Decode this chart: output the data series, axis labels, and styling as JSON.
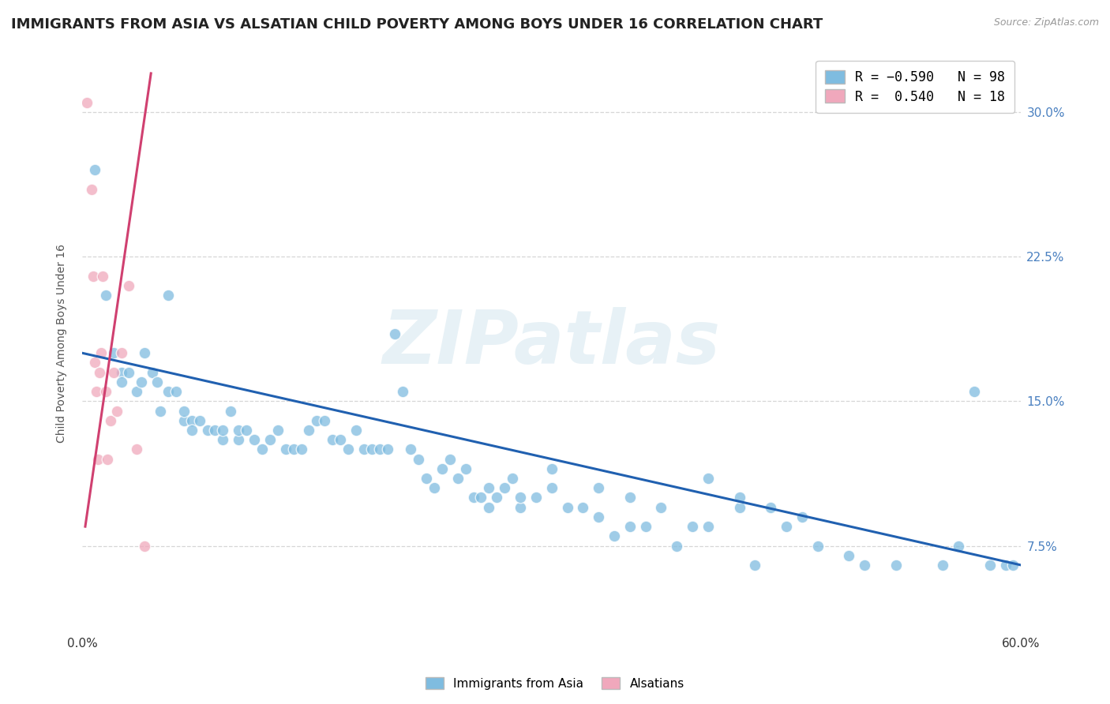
{
  "title": "IMMIGRANTS FROM ASIA VS ALSATIAN CHILD POVERTY AMONG BOYS UNDER 16 CORRELATION CHART",
  "source": "Source: ZipAtlas.com",
  "ylabel": "Child Poverty Among Boys Under 16",
  "xlim": [
    0.0,
    0.6
  ],
  "ylim": [
    0.03,
    0.33
  ],
  "ytick_labels": [
    "7.5%",
    "15.0%",
    "22.5%",
    "30.0%"
  ],
  "ytick_values": [
    0.075,
    0.15,
    0.225,
    0.3
  ],
  "xtick_values": [
    0.0,
    0.6
  ],
  "xtick_labels": [
    "0.0%",
    "60.0%"
  ],
  "watermark": "ZIPatlas",
  "blue_scatter_x": [
    0.008,
    0.015,
    0.02,
    0.025,
    0.025,
    0.03,
    0.035,
    0.038,
    0.04,
    0.045,
    0.048,
    0.05,
    0.055,
    0.055,
    0.06,
    0.065,
    0.065,
    0.07,
    0.07,
    0.075,
    0.08,
    0.085,
    0.09,
    0.09,
    0.095,
    0.1,
    0.1,
    0.105,
    0.11,
    0.115,
    0.12,
    0.125,
    0.13,
    0.135,
    0.14,
    0.145,
    0.15,
    0.155,
    0.16,
    0.165,
    0.17,
    0.175,
    0.18,
    0.185,
    0.19,
    0.195,
    0.2,
    0.205,
    0.21,
    0.215,
    0.22,
    0.225,
    0.23,
    0.235,
    0.24,
    0.245,
    0.25,
    0.255,
    0.26,
    0.265,
    0.27,
    0.275,
    0.28,
    0.29,
    0.3,
    0.31,
    0.32,
    0.33,
    0.34,
    0.35,
    0.36,
    0.38,
    0.4,
    0.42,
    0.43,
    0.45,
    0.47,
    0.49,
    0.5,
    0.52,
    0.55,
    0.56,
    0.57,
    0.58,
    0.59,
    0.595,
    0.4,
    0.42,
    0.44,
    0.46,
    0.33,
    0.35,
    0.37,
    0.39,
    0.3,
    0.28,
    0.26
  ],
  "blue_scatter_y": [
    0.27,
    0.205,
    0.175,
    0.165,
    0.16,
    0.165,
    0.155,
    0.16,
    0.175,
    0.165,
    0.16,
    0.145,
    0.205,
    0.155,
    0.155,
    0.14,
    0.145,
    0.14,
    0.135,
    0.14,
    0.135,
    0.135,
    0.13,
    0.135,
    0.145,
    0.13,
    0.135,
    0.135,
    0.13,
    0.125,
    0.13,
    0.135,
    0.125,
    0.125,
    0.125,
    0.135,
    0.14,
    0.14,
    0.13,
    0.13,
    0.125,
    0.135,
    0.125,
    0.125,
    0.125,
    0.125,
    0.185,
    0.155,
    0.125,
    0.12,
    0.11,
    0.105,
    0.115,
    0.12,
    0.11,
    0.115,
    0.1,
    0.1,
    0.105,
    0.1,
    0.105,
    0.11,
    0.095,
    0.1,
    0.115,
    0.095,
    0.095,
    0.09,
    0.08,
    0.085,
    0.085,
    0.075,
    0.085,
    0.095,
    0.065,
    0.085,
    0.075,
    0.07,
    0.065,
    0.065,
    0.065,
    0.075,
    0.155,
    0.065,
    0.065,
    0.065,
    0.11,
    0.1,
    0.095,
    0.09,
    0.105,
    0.1,
    0.095,
    0.085,
    0.105,
    0.1,
    0.095
  ],
  "pink_scatter_x": [
    0.003,
    0.006,
    0.007,
    0.008,
    0.009,
    0.01,
    0.011,
    0.012,
    0.013,
    0.015,
    0.016,
    0.018,
    0.02,
    0.022,
    0.025,
    0.03,
    0.035,
    0.04
  ],
  "pink_scatter_y": [
    0.305,
    0.26,
    0.215,
    0.17,
    0.155,
    0.12,
    0.165,
    0.175,
    0.215,
    0.155,
    0.12,
    0.14,
    0.165,
    0.145,
    0.175,
    0.21,
    0.125,
    0.075
  ],
  "blue_line_x": [
    0.0,
    0.6
  ],
  "blue_line_y": [
    0.175,
    0.065
  ],
  "pink_line_x": [
    0.002,
    0.044
  ],
  "pink_line_y": [
    0.085,
    0.32
  ],
  "blue_color": "#7fbce0",
  "pink_color": "#f0a8bc",
  "blue_line_color": "#2060b0",
  "pink_line_color": "#d04070",
  "grid_color": "#cccccc",
  "background_color": "#ffffff",
  "title_fontsize": 13,
  "axis_label_fontsize": 10,
  "tick_fontsize": 11,
  "scatter_size": 110,
  "tick_color_right": "#4a80c0",
  "tick_color_x": "#333333"
}
